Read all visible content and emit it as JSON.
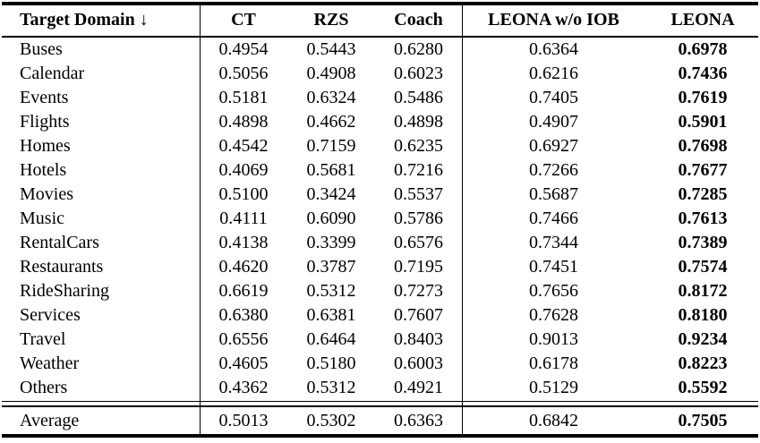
{
  "colors": {
    "background": "#ffffff",
    "text": "#000000",
    "rule": "#000000"
  },
  "table": {
    "columns": [
      "Target Domain ↓",
      "CT",
      "RZS",
      "Coach",
      "LEONA w/o IOB",
      "LEONA"
    ],
    "rows": [
      {
        "domain": "Buses",
        "values": [
          "0.4954",
          "0.5443",
          "0.6280",
          "0.6364",
          "0.6978"
        ]
      },
      {
        "domain": "Calendar",
        "values": [
          "0.5056",
          "0.4908",
          "0.6023",
          "0.6216",
          "0.7436"
        ]
      },
      {
        "domain": "Events",
        "values": [
          "0.5181",
          "0.6324",
          "0.5486",
          "0.7405",
          "0.7619"
        ]
      },
      {
        "domain": "Flights",
        "values": [
          "0.4898",
          "0.4662",
          "0.4898",
          "0.4907",
          "0.5901"
        ]
      },
      {
        "domain": "Homes",
        "values": [
          "0.4542",
          "0.7159",
          "0.6235",
          "0.6927",
          "0.7698"
        ]
      },
      {
        "domain": "Hotels",
        "values": [
          "0.4069",
          "0.5681",
          "0.7216",
          "0.7266",
          "0.7677"
        ]
      },
      {
        "domain": "Movies",
        "values": [
          "0.5100",
          "0.3424",
          "0.5537",
          "0.5687",
          "0.7285"
        ]
      },
      {
        "domain": "Music",
        "values": [
          "0.4111",
          "0.6090",
          "0.5786",
          "0.7466",
          "0.7613"
        ]
      },
      {
        "domain": "RentalCars",
        "values": [
          "0.4138",
          "0.3399",
          "0.6576",
          "0.7344",
          "0.7389"
        ]
      },
      {
        "domain": "Restaurants",
        "values": [
          "0.4620",
          "0.3787",
          "0.7195",
          "0.7451",
          "0.7574"
        ]
      },
      {
        "domain": "RideSharing",
        "values": [
          "0.6619",
          "0.5312",
          "0.7273",
          "0.7656",
          "0.8172"
        ]
      },
      {
        "domain": "Services",
        "values": [
          "0.6380",
          "0.6381",
          "0.7607",
          "0.7628",
          "0.8180"
        ]
      },
      {
        "domain": "Travel",
        "values": [
          "0.6556",
          "0.6464",
          "0.8403",
          "0.9013",
          "0.9234"
        ]
      },
      {
        "domain": "Weather",
        "values": [
          "0.4605",
          "0.5180",
          "0.6003",
          "0.6178",
          "0.8223"
        ]
      },
      {
        "domain": "Others",
        "values": [
          "0.4362",
          "0.5312",
          "0.4921",
          "0.5129",
          "0.5592"
        ]
      }
    ],
    "average_row": {
      "domain": "Average",
      "values": [
        "0.5013",
        "0.5302",
        "0.6363",
        "0.6842",
        "0.7505"
      ]
    },
    "bold_column_index": 4
  }
}
